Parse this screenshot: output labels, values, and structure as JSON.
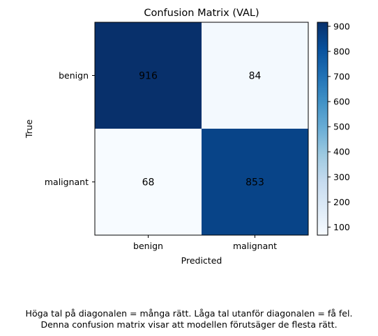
{
  "chart_data": {
    "type": "heatmap",
    "title": "Confusion Matrix (VAL)",
    "xlabel": "Predicted",
    "ylabel": "True",
    "x_categories": [
      "benign",
      "malignant"
    ],
    "y_categories": [
      "benign",
      "malignant"
    ],
    "matrix": [
      [
        916,
        84
      ],
      [
        68,
        853
      ]
    ],
    "colormap": "Blues",
    "color_range": [
      68,
      916
    ],
    "colorbar_ticks": [
      100,
      200,
      300,
      400,
      500,
      600,
      700,
      800,
      900
    ],
    "colorbar_position": "right",
    "grid": false
  },
  "caption": {
    "line1": "Höga tal på diagonalen = många rätt. Låga tal utanför diagonalen = få fel.",
    "line2": "Denna confusion matrix visar att modellen förutsäger de flesta rätt."
  }
}
